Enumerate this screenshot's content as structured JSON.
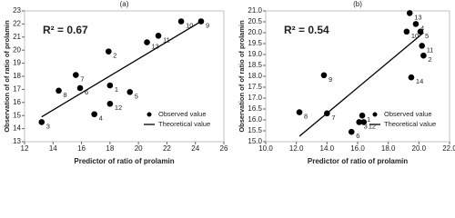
{
  "chart_data": [
    {
      "type": "scatter",
      "title": "(a)",
      "annotation": "R² = 0.67",
      "x_label": "Predictor of  ratio of  prolamin",
      "y_label": "Observation of  of ratio of prolamin",
      "xlim": [
        12,
        26
      ],
      "xticks": [
        12,
        14,
        16,
        18,
        20,
        22,
        24,
        26
      ],
      "ylim": [
        13,
        23
      ],
      "yticks": [
        13,
        14,
        15,
        16,
        17,
        18,
        19,
        20,
        21,
        22,
        23
      ],
      "series": [
        {
          "name": "Observed value",
          "color": "#000000",
          "labels": [
            "3",
            "8",
            "6",
            "7",
            "4",
            "1",
            "12",
            "5",
            "2",
            "13",
            "11",
            "10",
            "9"
          ],
          "x": [
            13.2,
            14.4,
            15.9,
            15.6,
            16.9,
            18.0,
            18.0,
            19.4,
            17.9,
            20.6,
            21.4,
            23.0,
            24.4
          ],
          "values": [
            14.5,
            16.9,
            17.1,
            18.1,
            15.1,
            17.3,
            15.9,
            16.8,
            19.9,
            20.6,
            21.1,
            22.2,
            22.2
          ]
        },
        {
          "name": "Theoretical value",
          "color": "#000000",
          "x": [
            13.2,
            24.4
          ],
          "values": [
            14.9,
            22.2
          ]
        }
      ]
    },
    {
      "type": "scatter",
      "title": "(b)",
      "annotation": "R² = 0.54",
      "x_label": "Predictor of ratio of prolamin",
      "y_label": "Observation of  of ratio of prolamin",
      "xlim": [
        10,
        22
      ],
      "xticks": [
        {
          "value": 10,
          "label": "10.0"
        },
        {
          "value": 12,
          "label": "12.0"
        },
        {
          "value": 14,
          "label": "14.0"
        },
        {
          "value": 16,
          "label": "16.0"
        },
        {
          "value": 18,
          "label": "18.0"
        },
        {
          "value": 20,
          "label": "20.0"
        },
        {
          "value": 22,
          "label": "22.0"
        }
      ],
      "ylim": [
        15,
        21
      ],
      "yticks": [
        {
          "value": 15,
          "label": "15.0"
        },
        15.5,
        {
          "value": 16,
          "label": "16.0"
        },
        16.5,
        {
          "value": 17,
          "label": "17.0"
        },
        17.5,
        {
          "value": 18,
          "label": "18.0"
        },
        18.5,
        {
          "value": 19,
          "label": "19.0"
        },
        19.5,
        {
          "value": 20,
          "label": "20.0"
        },
        20.5,
        {
          "value": 21,
          "label": "21.0"
        }
      ],
      "series": [
        {
          "name": "Observed value",
          "color": "#000000",
          "labels": [
            "8",
            "6",
            "3",
            "12",
            "7",
            "1",
            "9",
            "14",
            "2",
            "11",
            "10",
            "5",
            "4",
            "13"
          ],
          "x": [
            12.2,
            15.6,
            16.1,
            16.4,
            14.0,
            16.3,
            13.8,
            19.5,
            20.3,
            20.2,
            19.2,
            20.1,
            19.8,
            19.4
          ],
          "values": [
            16.35,
            15.45,
            15.9,
            15.9,
            16.3,
            16.2,
            18.05,
            17.95,
            18.95,
            19.4,
            20.05,
            20.05,
            20.4,
            20.9
          ]
        },
        {
          "name": "Theoretical value",
          "color": "#000000",
          "x": [
            12.2,
            20.3
          ],
          "values": [
            15.25,
            20.0
          ]
        }
      ]
    }
  ]
}
